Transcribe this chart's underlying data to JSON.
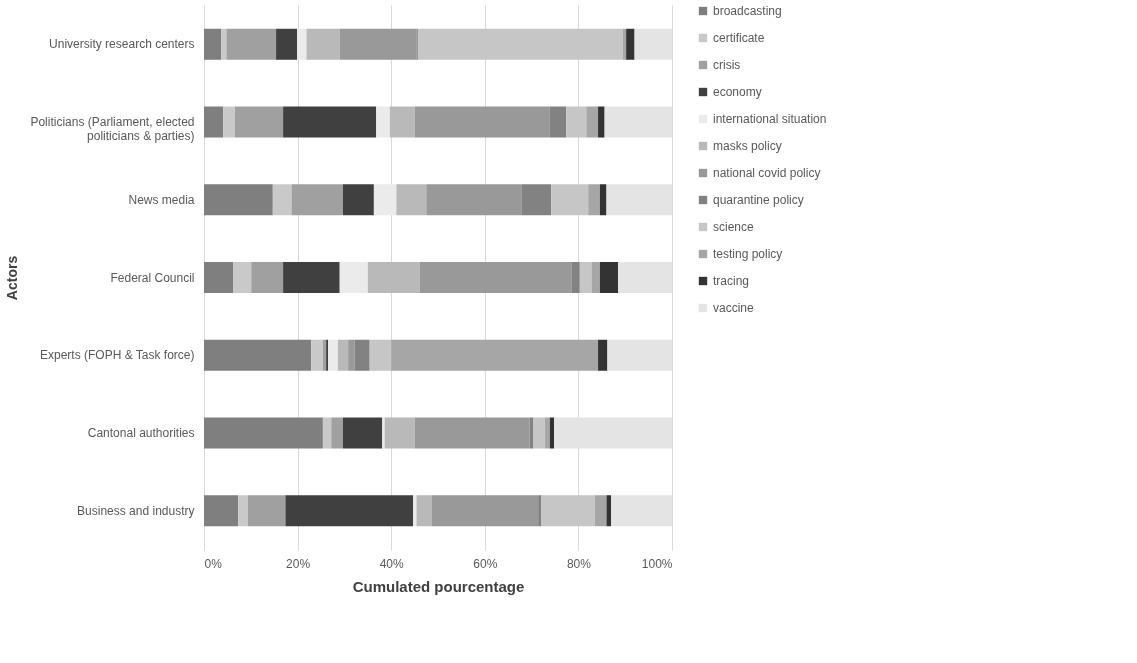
{
  "chart_data": {
    "type": "bar",
    "orientation": "horizontal",
    "stacked": true,
    "xlabel": "Cumulated pourcentage",
    "ylabel": "Actors",
    "categories": [
      "University research centers",
      "Politicians (Parliament, elected politicians & parties)",
      "News media",
      "Federal Council",
      "Experts (FOPH & Task force)",
      "Cantonal authorities",
      "Business and industry"
    ],
    "series": [
      {
        "name": "broadcasting",
        "color": "#7f7f7f",
        "values": [
          3.7,
          4.1,
          14.7,
          6.2,
          22.9,
          25.4,
          7.3
        ]
      },
      {
        "name": "certificate",
        "color": "#c9c9c9",
        "values": [
          1.1,
          2.5,
          4.0,
          3.9,
          2.5,
          1.8,
          2.1
        ]
      },
      {
        "name": "crisis",
        "color": "#a0a0a0",
        "values": [
          10.6,
          10.3,
          11.0,
          6.8,
          0.7,
          2.5,
          8.0
        ]
      },
      {
        "name": "economy",
        "color": "#404040",
        "values": [
          4.5,
          19.9,
          6.6,
          12.1,
          0.4,
          8.4,
          27.3
        ]
      },
      {
        "name": "international situation",
        "color": "#ebebeb",
        "values": [
          2.0,
          2.9,
          4.8,
          6.0,
          2.1,
          0.5,
          0.7
        ]
      },
      {
        "name": "masks policy",
        "color": "#b9b9b9",
        "values": [
          7.1,
          5.3,
          6.4,
          11.1,
          2.2,
          6.4,
          3.2
        ]
      },
      {
        "name": "national covid policy",
        "color": "#999999",
        "values": [
          16.4,
          28.9,
          20.3,
          32.4,
          1.4,
          24.6,
          22.8
        ]
      },
      {
        "name": "quarantine policy",
        "color": "#828282",
        "values": [
          0.3,
          3.5,
          6.4,
          1.8,
          3.2,
          0.7,
          0.7
        ]
      },
      {
        "name": "science",
        "color": "#c6c6c6",
        "values": [
          43.8,
          4.3,
          7.9,
          2.5,
          4.6,
          2.5,
          11.4
        ]
      },
      {
        "name": "testing policy",
        "color": "#a6a6a6",
        "values": [
          0.7,
          2.5,
          2.5,
          1.8,
          44.2,
          1.1,
          2.5
        ]
      },
      {
        "name": "tracing",
        "color": "#333333",
        "values": [
          1.8,
          1.4,
          1.4,
          3.9,
          2.0,
          0.9,
          1.0
        ]
      },
      {
        "name": "vaccine",
        "color": "#e4e4e4",
        "values": [
          8.0,
          14.4,
          14.0,
          11.5,
          13.8,
          25.2,
          13.0
        ]
      }
    ],
    "xlim": [
      0,
      100
    ],
    "xticks": [
      {
        "value": 0,
        "label": "0%"
      },
      {
        "value": 20,
        "label": "20%"
      },
      {
        "value": 40,
        "label": "40%"
      },
      {
        "value": 60,
        "label": "60%"
      },
      {
        "value": 80,
        "label": "80%"
      },
      {
        "value": 100,
        "label": "100%"
      }
    ],
    "grid": "x",
    "legend": "right"
  }
}
